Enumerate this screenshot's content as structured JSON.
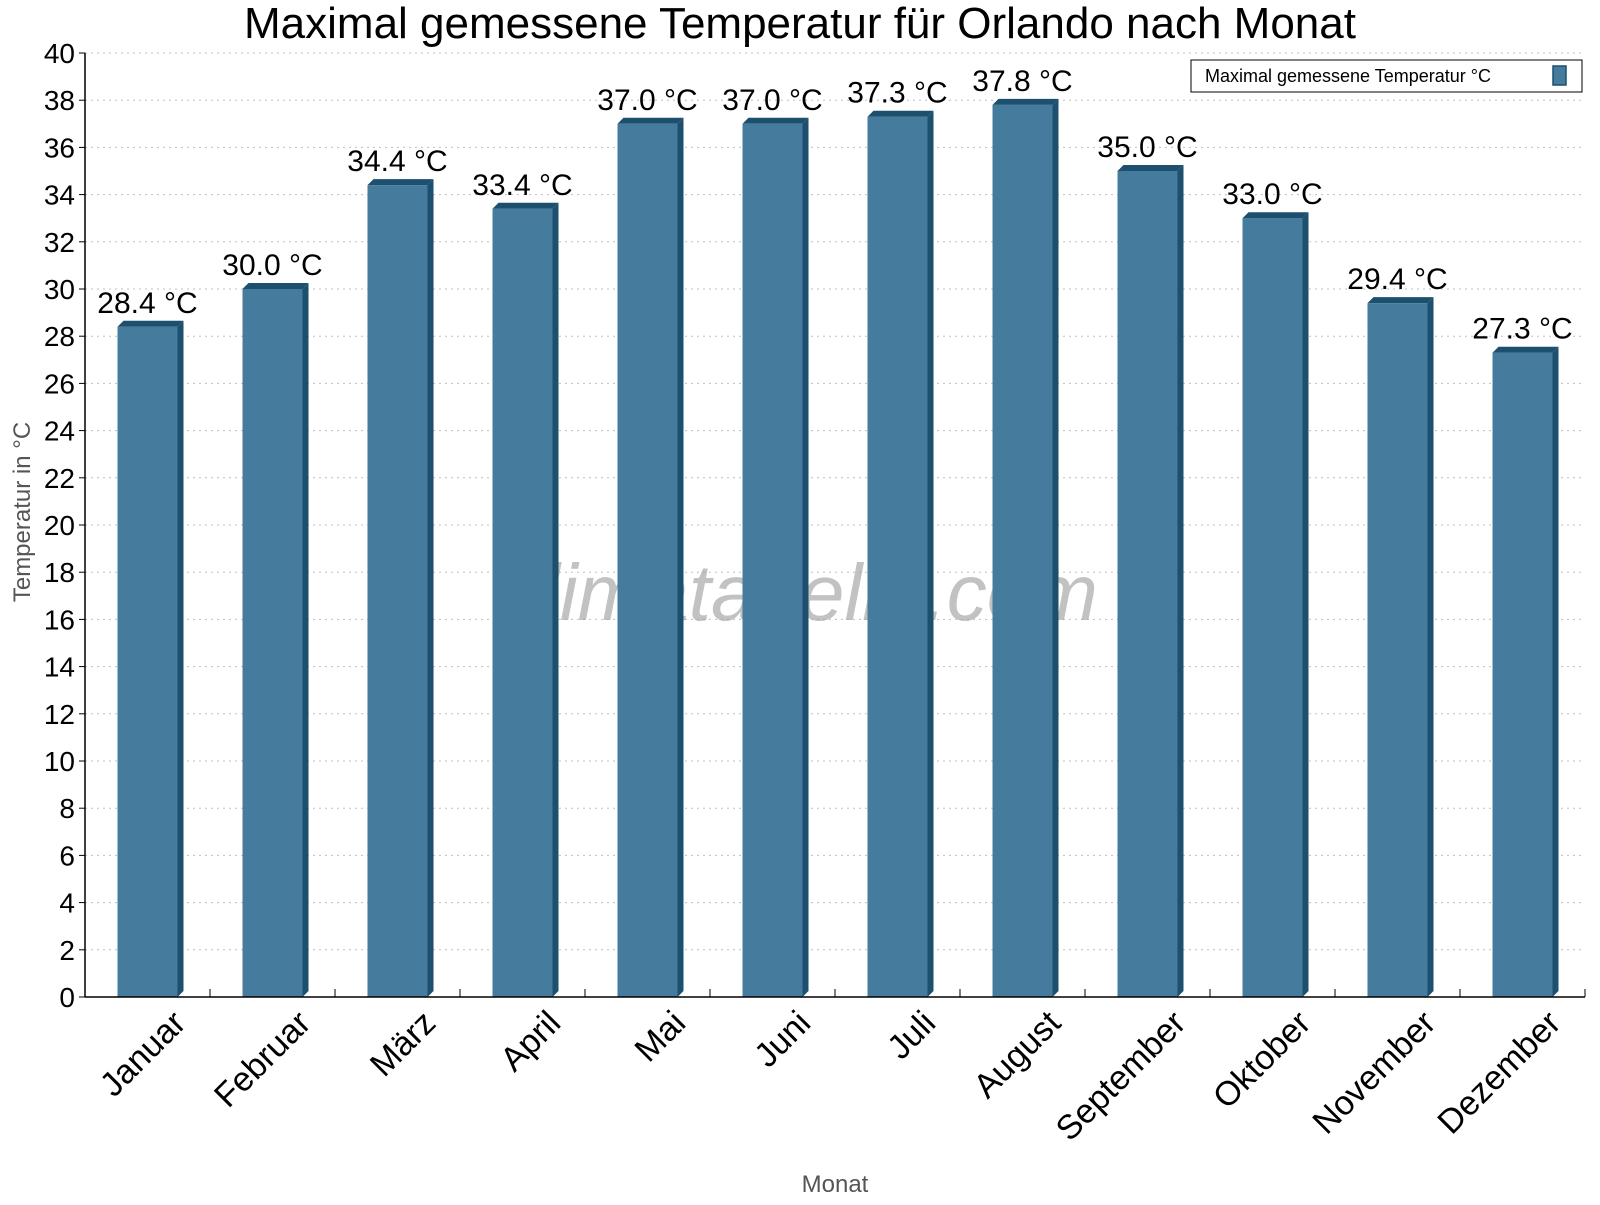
{
  "chart_data": {
    "type": "bar",
    "title": "Maximal gemessene Temperatur für Orlando nach Monat",
    "xlabel": "Monat",
    "ylabel": "Temperatur in °C",
    "ylim": [
      0,
      40
    ],
    "ytick_step": 2,
    "grid": true,
    "legend_position": "top-right",
    "categories": [
      "Januar",
      "Februar",
      "März",
      "April",
      "Mai",
      "Juni",
      "Juli",
      "August",
      "September",
      "Oktober",
      "November",
      "Dezember"
    ],
    "series": [
      {
        "name": "Maximal gemessene Temperatur °C",
        "color": "#457b9d",
        "values": [
          28.4,
          30.0,
          34.4,
          33.4,
          37.0,
          37.0,
          37.3,
          37.8,
          35.0,
          33.0,
          29.4,
          27.3
        ],
        "labels": [
          "28.4 °C",
          "30.0 °C",
          "34.4 °C",
          "33.4 °C",
          "37.0 °C",
          "37.0 °C",
          "37.3 °C",
          "37.8 °C",
          "35.0 °C",
          "33.0 °C",
          "29.4 °C",
          "27.3 °C"
        ]
      }
    ]
  },
  "watermark": "klimatabelle.com",
  "colors": {
    "bar_front": "#457b9d",
    "bar_side": "#1d4f6e",
    "bar_top": "#1d4f6e"
  }
}
